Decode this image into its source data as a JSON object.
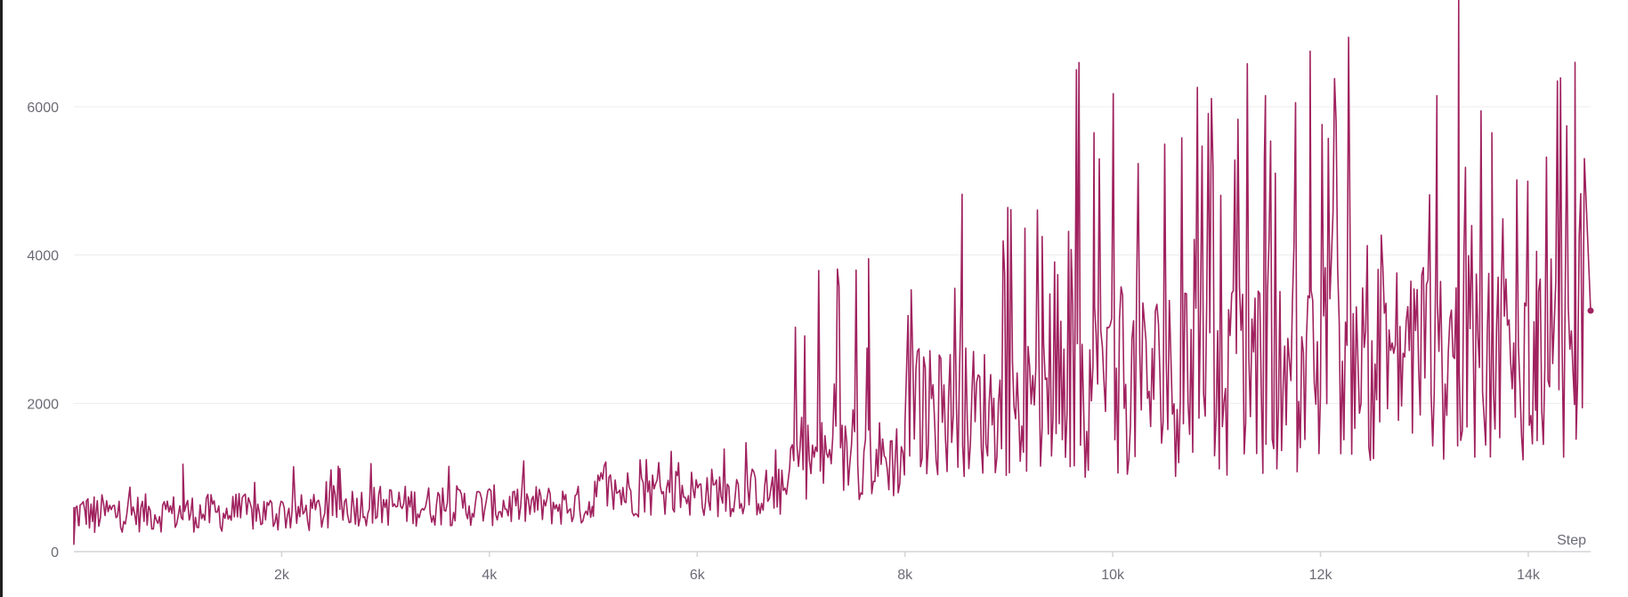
{
  "chart_data": {
    "type": "line",
    "title": "",
    "xlabel": "Step",
    "ylabel": "",
    "xlim": [
      0,
      14600
    ],
    "ylim": [
      0,
      7200
    ],
    "x_ticks": [
      2000,
      4000,
      6000,
      8000,
      10000,
      12000,
      14000
    ],
    "x_tick_labels": [
      "2k",
      "4k",
      "6k",
      "8k",
      "10k",
      "12k",
      "14k"
    ],
    "y_ticks": [
      0,
      2000,
      4000,
      6000
    ],
    "y_tick_labels": [
      "0",
      "2000",
      "4000",
      "6000"
    ],
    "grid": true,
    "last_point_marker": true,
    "series": [
      {
        "color": "#a0225f",
        "phases": [
          {
            "x_start": 0,
            "x_end": 2500,
            "base": 520,
            "spread": 260,
            "spike_chance": 0.06,
            "spike_max": 1150
          },
          {
            "x_start": 2500,
            "x_end": 5000,
            "base": 620,
            "spread": 280,
            "spike_chance": 0.06,
            "spike_max": 1250
          },
          {
            "x_start": 5000,
            "x_end": 6900,
            "base": 800,
            "spread": 340,
            "spike_chance": 0.07,
            "spike_max": 1550
          },
          {
            "x_start": 6900,
            "x_end": 8000,
            "base": 1250,
            "spread": 550,
            "spike_chance": 0.12,
            "spike_max": 4000
          },
          {
            "x_start": 8000,
            "x_end": 9600,
            "base": 1900,
            "spread": 900,
            "spike_chance": 0.18,
            "spike_max": 4800
          },
          {
            "x_start": 9600,
            "x_end": 12000,
            "base": 2300,
            "spread": 1300,
            "spike_chance": 0.22,
            "spike_max": 6600
          },
          {
            "x_start": 12000,
            "x_end": 14530,
            "base": 2600,
            "spread": 1400,
            "spike_chance": 0.24,
            "spike_max": 7000
          }
        ],
        "points": [
          [
            0,
            100
          ],
          [
            50,
            350
          ],
          [
            120,
            680
          ],
          [
            200,
            260
          ],
          [
            1050,
            1180
          ],
          [
            2560,
            1120
          ],
          [
            5820,
            1200
          ],
          [
            7650,
            3950
          ],
          [
            8550,
            4820
          ],
          [
            9320,
            4250
          ],
          [
            9650,
            6500
          ],
          [
            9820,
            5650
          ],
          [
            11470,
            6150
          ],
          [
            11900,
            6750
          ],
          [
            13120,
            6150
          ],
          [
            13330,
            7450
          ],
          [
            13650,
            5650
          ],
          [
            14080,
            4050
          ],
          [
            14450,
            6600
          ],
          [
            14540,
            5300
          ],
          [
            14600,
            3250
          ]
        ]
      }
    ]
  }
}
